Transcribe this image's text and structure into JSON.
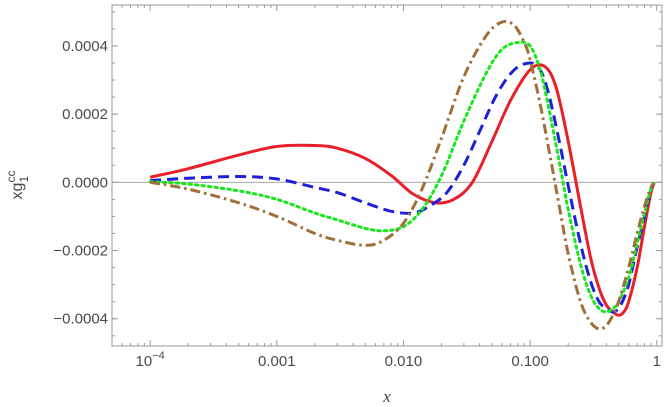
{
  "chart_data": {
    "type": "line",
    "title": "",
    "xlabel": "x",
    "ylabel": "xg",
    "ylabel_sup": "cc",
    "ylabel_sub": "1",
    "xscale": "log",
    "xlim": [
      5e-05,
      1.1
    ],
    "ylim": [
      -0.00048,
      0.00052
    ],
    "grid": false,
    "xticks": [
      {
        "value": 0.0001,
        "label": "10",
        "sup": "−4"
      },
      {
        "value": 0.001,
        "label": "0.001",
        "sup": ""
      },
      {
        "value": 0.01,
        "label": "0.010",
        "sup": ""
      },
      {
        "value": 0.1,
        "label": "0.100",
        "sup": ""
      },
      {
        "value": 1,
        "label": "1",
        "sup": ""
      }
    ],
    "yticks": [
      {
        "value": 0.0004,
        "label": "0.0004"
      },
      {
        "value": 0.0002,
        "label": "0.0002"
      },
      {
        "value": 0.0,
        "label": "0.0000"
      },
      {
        "value": -0.0002,
        "label": "−0.0002"
      },
      {
        "value": -0.0004,
        "label": "−0.0004"
      }
    ],
    "series": [
      {
        "name": "solid",
        "color": "#e8202a",
        "dash": "solid",
        "x": [
          0.0001,
          0.0002,
          0.0005,
          0.001,
          0.002,
          0.003,
          0.005,
          0.008,
          0.012,
          0.018,
          0.025,
          0.035,
          0.05,
          0.07,
          0.1,
          0.13,
          0.16,
          0.2,
          0.25,
          0.3,
          0.35,
          0.4,
          0.45,
          0.5,
          0.55,
          0.6,
          0.7,
          0.8,
          0.9,
          0.95
        ],
        "y": [
          1.5e-05,
          4e-05,
          8e-05,
          0.000105,
          0.000108,
          0.0001,
          7e-05,
          2e-05,
          -3.5e-05,
          -6e-05,
          -5e-05,
          0.0,
          0.00012,
          0.00024,
          0.00033,
          0.00034,
          0.00028,
          0.00012,
          -7e-05,
          -0.00022,
          -0.00031,
          -0.00036,
          -0.00038,
          -0.00039,
          -0.00038,
          -0.00035,
          -0.00025,
          -0.00013,
          -3e-05,
          -5e-06
        ]
      },
      {
        "name": "dashed",
        "color": "#1f20d8",
        "dash": "dashed",
        "x": [
          0.0001,
          0.0002,
          0.0005,
          0.001,
          0.002,
          0.003,
          0.005,
          0.008,
          0.012,
          0.016,
          0.022,
          0.03,
          0.04,
          0.055,
          0.075,
          0.1,
          0.12,
          0.14,
          0.17,
          0.2,
          0.25,
          0.3,
          0.35,
          0.4,
          0.45,
          0.5,
          0.55,
          0.6,
          0.7,
          0.8,
          0.9,
          0.95
        ],
        "y": [
          5e-06,
          1.2e-05,
          1.7e-05,
          1e-05,
          -1.5e-05,
          -3e-05,
          -6e-05,
          -8.5e-05,
          -9e-05,
          -7e-05,
          -3e-05,
          5e-05,
          0.00015,
          0.00026,
          0.00033,
          0.00035,
          0.00033,
          0.00026,
          0.00012,
          -1e-05,
          -0.00018,
          -0.00029,
          -0.00035,
          -0.00037,
          -0.00038,
          -0.00037,
          -0.00034,
          -0.0003,
          -0.00019,
          -0.0001,
          -2e-05,
          -3e-06
        ]
      },
      {
        "name": "dotted",
        "color": "#19e61c",
        "dash": "dotted",
        "x": [
          0.0001,
          0.0002,
          0.0005,
          0.001,
          0.002,
          0.003,
          0.005,
          0.007,
          0.01,
          0.014,
          0.02,
          0.03,
          0.045,
          0.06,
          0.08,
          0.1,
          0.12,
          0.14,
          0.17,
          0.2,
          0.25,
          0.3,
          0.35,
          0.4,
          0.45,
          0.5,
          0.6,
          0.7,
          0.8,
          0.9,
          0.95
        ],
        "y": [
          2e-06,
          -5e-06,
          -2.5e-05,
          -5e-05,
          -9e-05,
          -0.00011,
          -0.000135,
          -0.000142,
          -0.00013,
          -8e-05,
          2e-05,
          0.00018,
          0.00032,
          0.00039,
          0.00041,
          0.0004,
          0.00033,
          0.00022,
          6e-05,
          -8e-05,
          -0.00024,
          -0.00033,
          -0.00037,
          -0.00038,
          -0.00037,
          -0.00035,
          -0.00028,
          -0.00018,
          -9e-05,
          -2e-05,
          -3e-06
        ]
      },
      {
        "name": "dash-dot",
        "color": "#a0703a",
        "dash": "dashdot",
        "x": [
          0.0001,
          0.0002,
          0.0005,
          0.001,
          0.002,
          0.003,
          0.005,
          0.007,
          0.01,
          0.014,
          0.02,
          0.03,
          0.045,
          0.06,
          0.075,
          0.09,
          0.1,
          0.12,
          0.14,
          0.17,
          0.2,
          0.25,
          0.3,
          0.35,
          0.4,
          0.45,
          0.5,
          0.6,
          0.7,
          0.8,
          0.9,
          0.95
        ],
        "y": [
          0.0,
          -2e-05,
          -6e-05,
          -0.0001,
          -0.00015,
          -0.00017,
          -0.000185,
          -0.00017,
          -0.00012,
          -2e-05,
          0.00013,
          0.00031,
          0.00043,
          0.00047,
          0.00046,
          0.00041,
          0.00036,
          0.00023,
          0.0001,
          -7e-05,
          -0.00021,
          -0.00035,
          -0.00041,
          -0.00043,
          -0.00042,
          -0.00039,
          -0.00035,
          -0.00025,
          -0.00015,
          -7e-05,
          -1.5e-05,
          -2e-06
        ]
      }
    ]
  }
}
